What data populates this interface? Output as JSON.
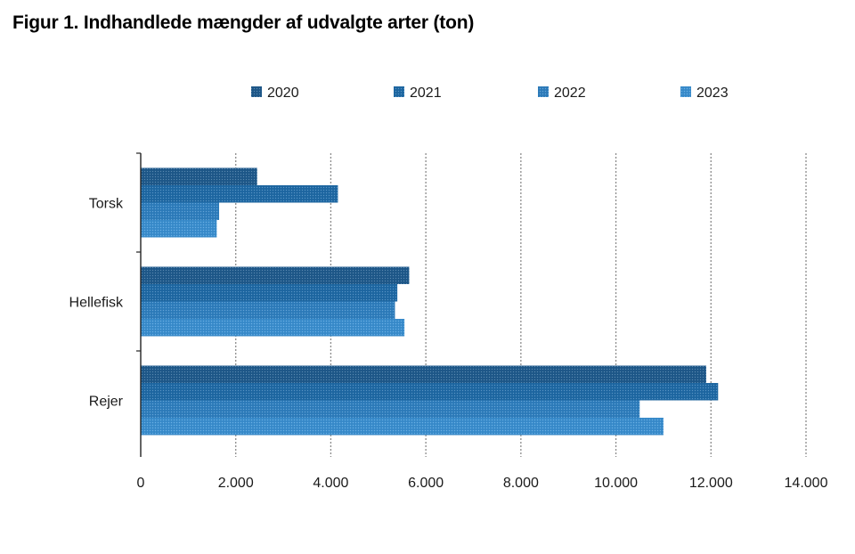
{
  "figure": {
    "title": "Figur 1. Indhandlede mængder af udvalgte arter (ton)"
  },
  "chart_data": {
    "type": "bar",
    "orientation": "horizontal",
    "title": "Figur 1. Indhandlede mængder af udvalgte arter (ton)",
    "xlabel": "",
    "ylabel": "",
    "categories": [
      "Torsk",
      "Hellefisk",
      "Rejer"
    ],
    "series": [
      {
        "name": "2020",
        "values": [
          2450,
          5650,
          11900
        ],
        "color": "#1f5a8c"
      },
      {
        "name": "2021",
        "values": [
          4150,
          5400,
          12150
        ],
        "color": "#1f6aa6"
      },
      {
        "name": "2022",
        "values": [
          1650,
          5350,
          10500
        ],
        "color": "#2f7fbf"
      },
      {
        "name": "2023",
        "values": [
          1600,
          5550,
          11000
        ],
        "color": "#3a8fd0"
      }
    ],
    "xlim": [
      0,
      14000
    ],
    "xticks": [
      0,
      2000,
      4000,
      6000,
      8000,
      10000,
      12000,
      14000
    ],
    "xtick_labels": [
      "0",
      "2.000",
      "4.000",
      "6.000",
      "8.000",
      "10.000",
      "12.000",
      "14.000"
    ],
    "grid": "vertical dashed",
    "legend_position": "top"
  }
}
